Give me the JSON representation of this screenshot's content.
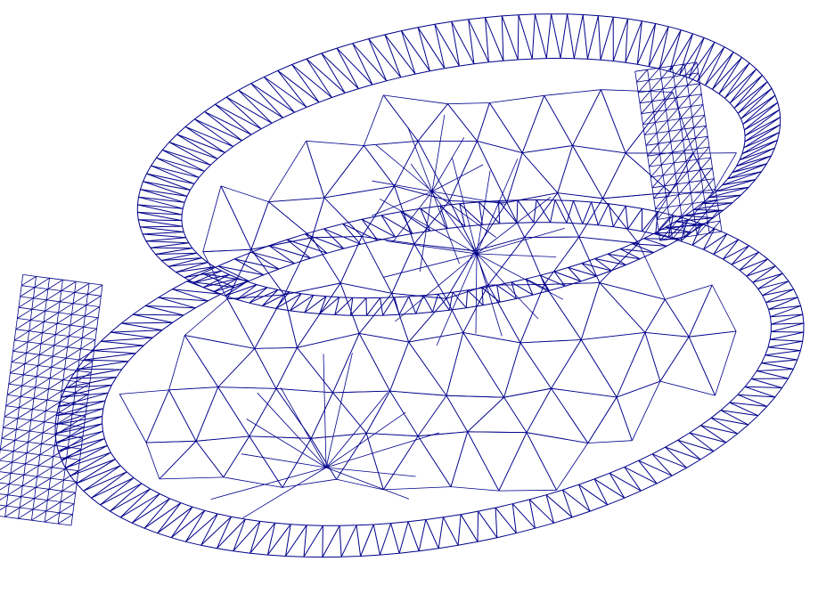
{
  "figure": {
    "kind": "triangular finite-element mesh",
    "background": "#ffffff",
    "line_color": "#00008b"
  }
}
